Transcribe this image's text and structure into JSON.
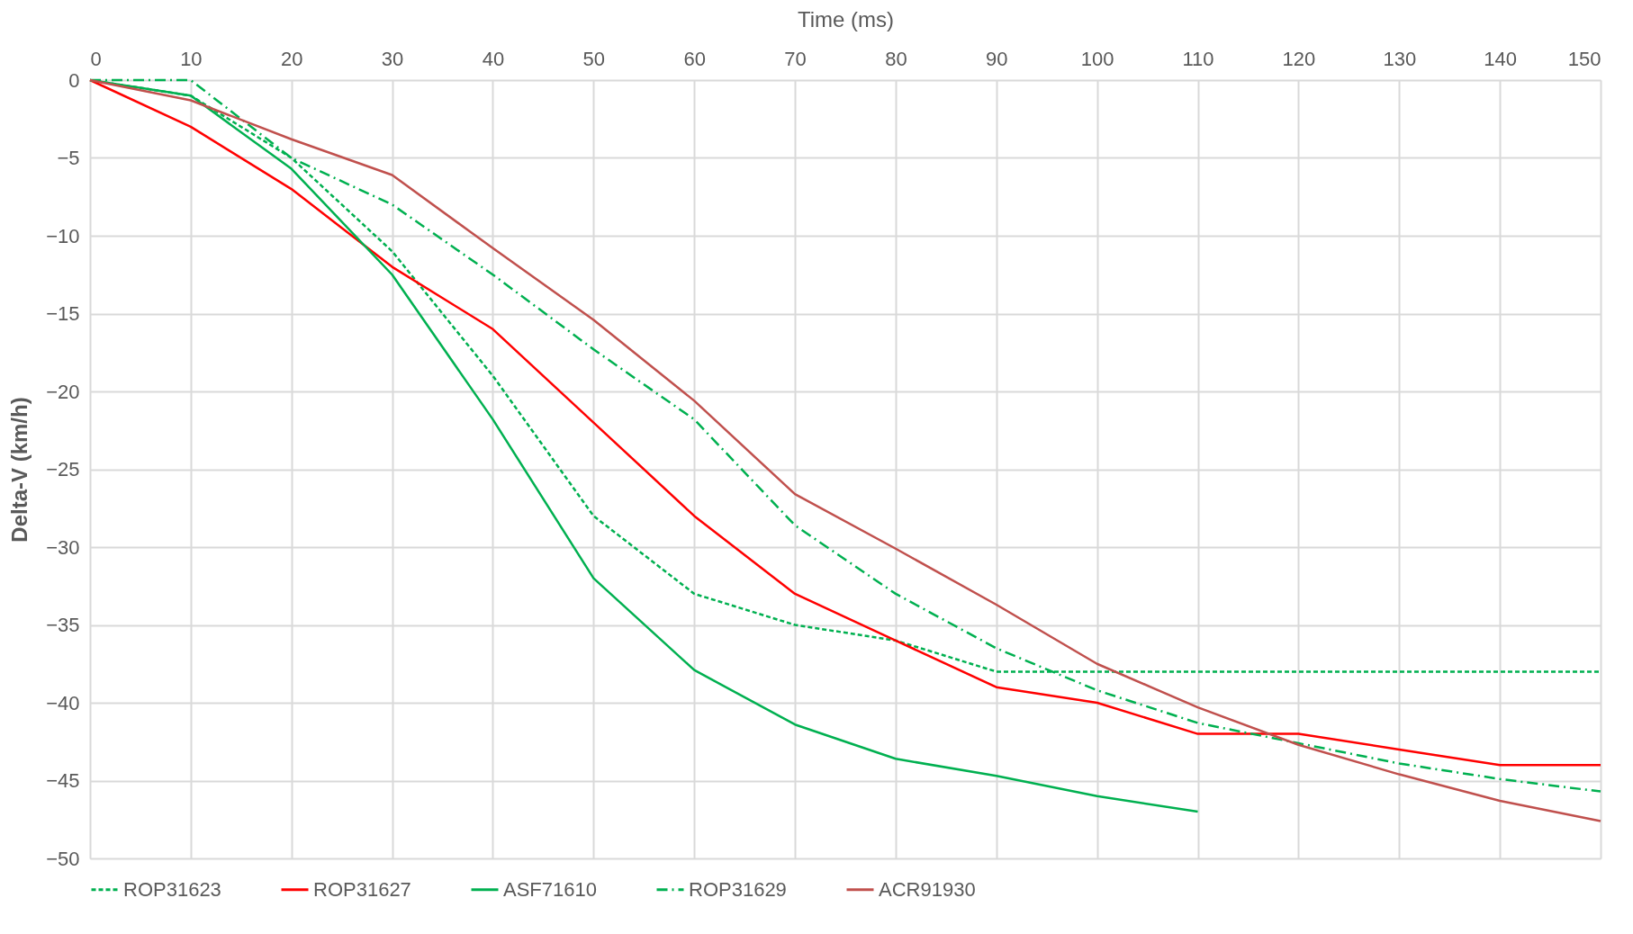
{
  "chart_data": {
    "type": "line",
    "xlabel": "Time (ms)",
    "ylabel": "Delta-V (km/h)",
    "x": [
      0,
      10,
      20,
      30,
      40,
      50,
      60,
      70,
      80,
      90,
      100,
      110,
      120,
      130,
      140,
      150
    ],
    "xlim": [
      0,
      150
    ],
    "xticks": [
      0,
      10,
      20,
      30,
      40,
      50,
      60,
      70,
      80,
      90,
      100,
      110,
      120,
      130,
      140,
      150
    ],
    "ylim": [
      -50,
      0
    ],
    "yticks": [
      -50,
      -45,
      -40,
      -35,
      -30,
      -25,
      -20,
      -15,
      -10,
      -5,
      0
    ],
    "grid": true,
    "legend": "bottom",
    "marker": "none",
    "series": [
      {
        "name": "ROP31623",
        "color": "#00b050",
        "line_style": "dotted",
        "values": [
          0,
          -1,
          -5,
          -11,
          -19,
          -28,
          -33,
          -35,
          -36,
          -38,
          -38,
          -38,
          -38,
          -38,
          -38,
          -38
        ]
      },
      {
        "name": "ROP31627",
        "color": "#ff0000",
        "line_style": "solid",
        "values": [
          0,
          -3,
          -7,
          -12,
          -16,
          -22,
          -28,
          -33,
          -36,
          -39,
          -40,
          -42,
          -42,
          -43,
          -44,
          -44
        ]
      },
      {
        "name": "ASF71610",
        "color": "#00b050",
        "line_style": "solid",
        "values": [
          0,
          -1,
          -5.7,
          -12.5,
          -21.8,
          -32,
          -37.9,
          -41.4,
          -43.6,
          -44.7,
          -46,
          -47,
          null,
          null,
          null,
          null
        ]
      },
      {
        "name": "ROP31629",
        "color": "#00b050",
        "line_style": "dashdot",
        "values": [
          0,
          0,
          -5,
          -8,
          -12.5,
          -17.3,
          -21.8,
          -28.6,
          -33,
          -36.5,
          -39.2,
          -41.3,
          -42.6,
          -43.9,
          -44.9,
          -45.7
        ]
      },
      {
        "name": "ACR91930",
        "color": "#c0504d",
        "line_style": "solid",
        "values": [
          0,
          -1.3,
          -3.8,
          -6.1,
          -10.8,
          -15.4,
          -20.6,
          -26.6,
          -30.1,
          -33.7,
          -37.5,
          -40.3,
          -42.7,
          -44.6,
          -46.3,
          -47.6
        ]
      }
    ]
  }
}
